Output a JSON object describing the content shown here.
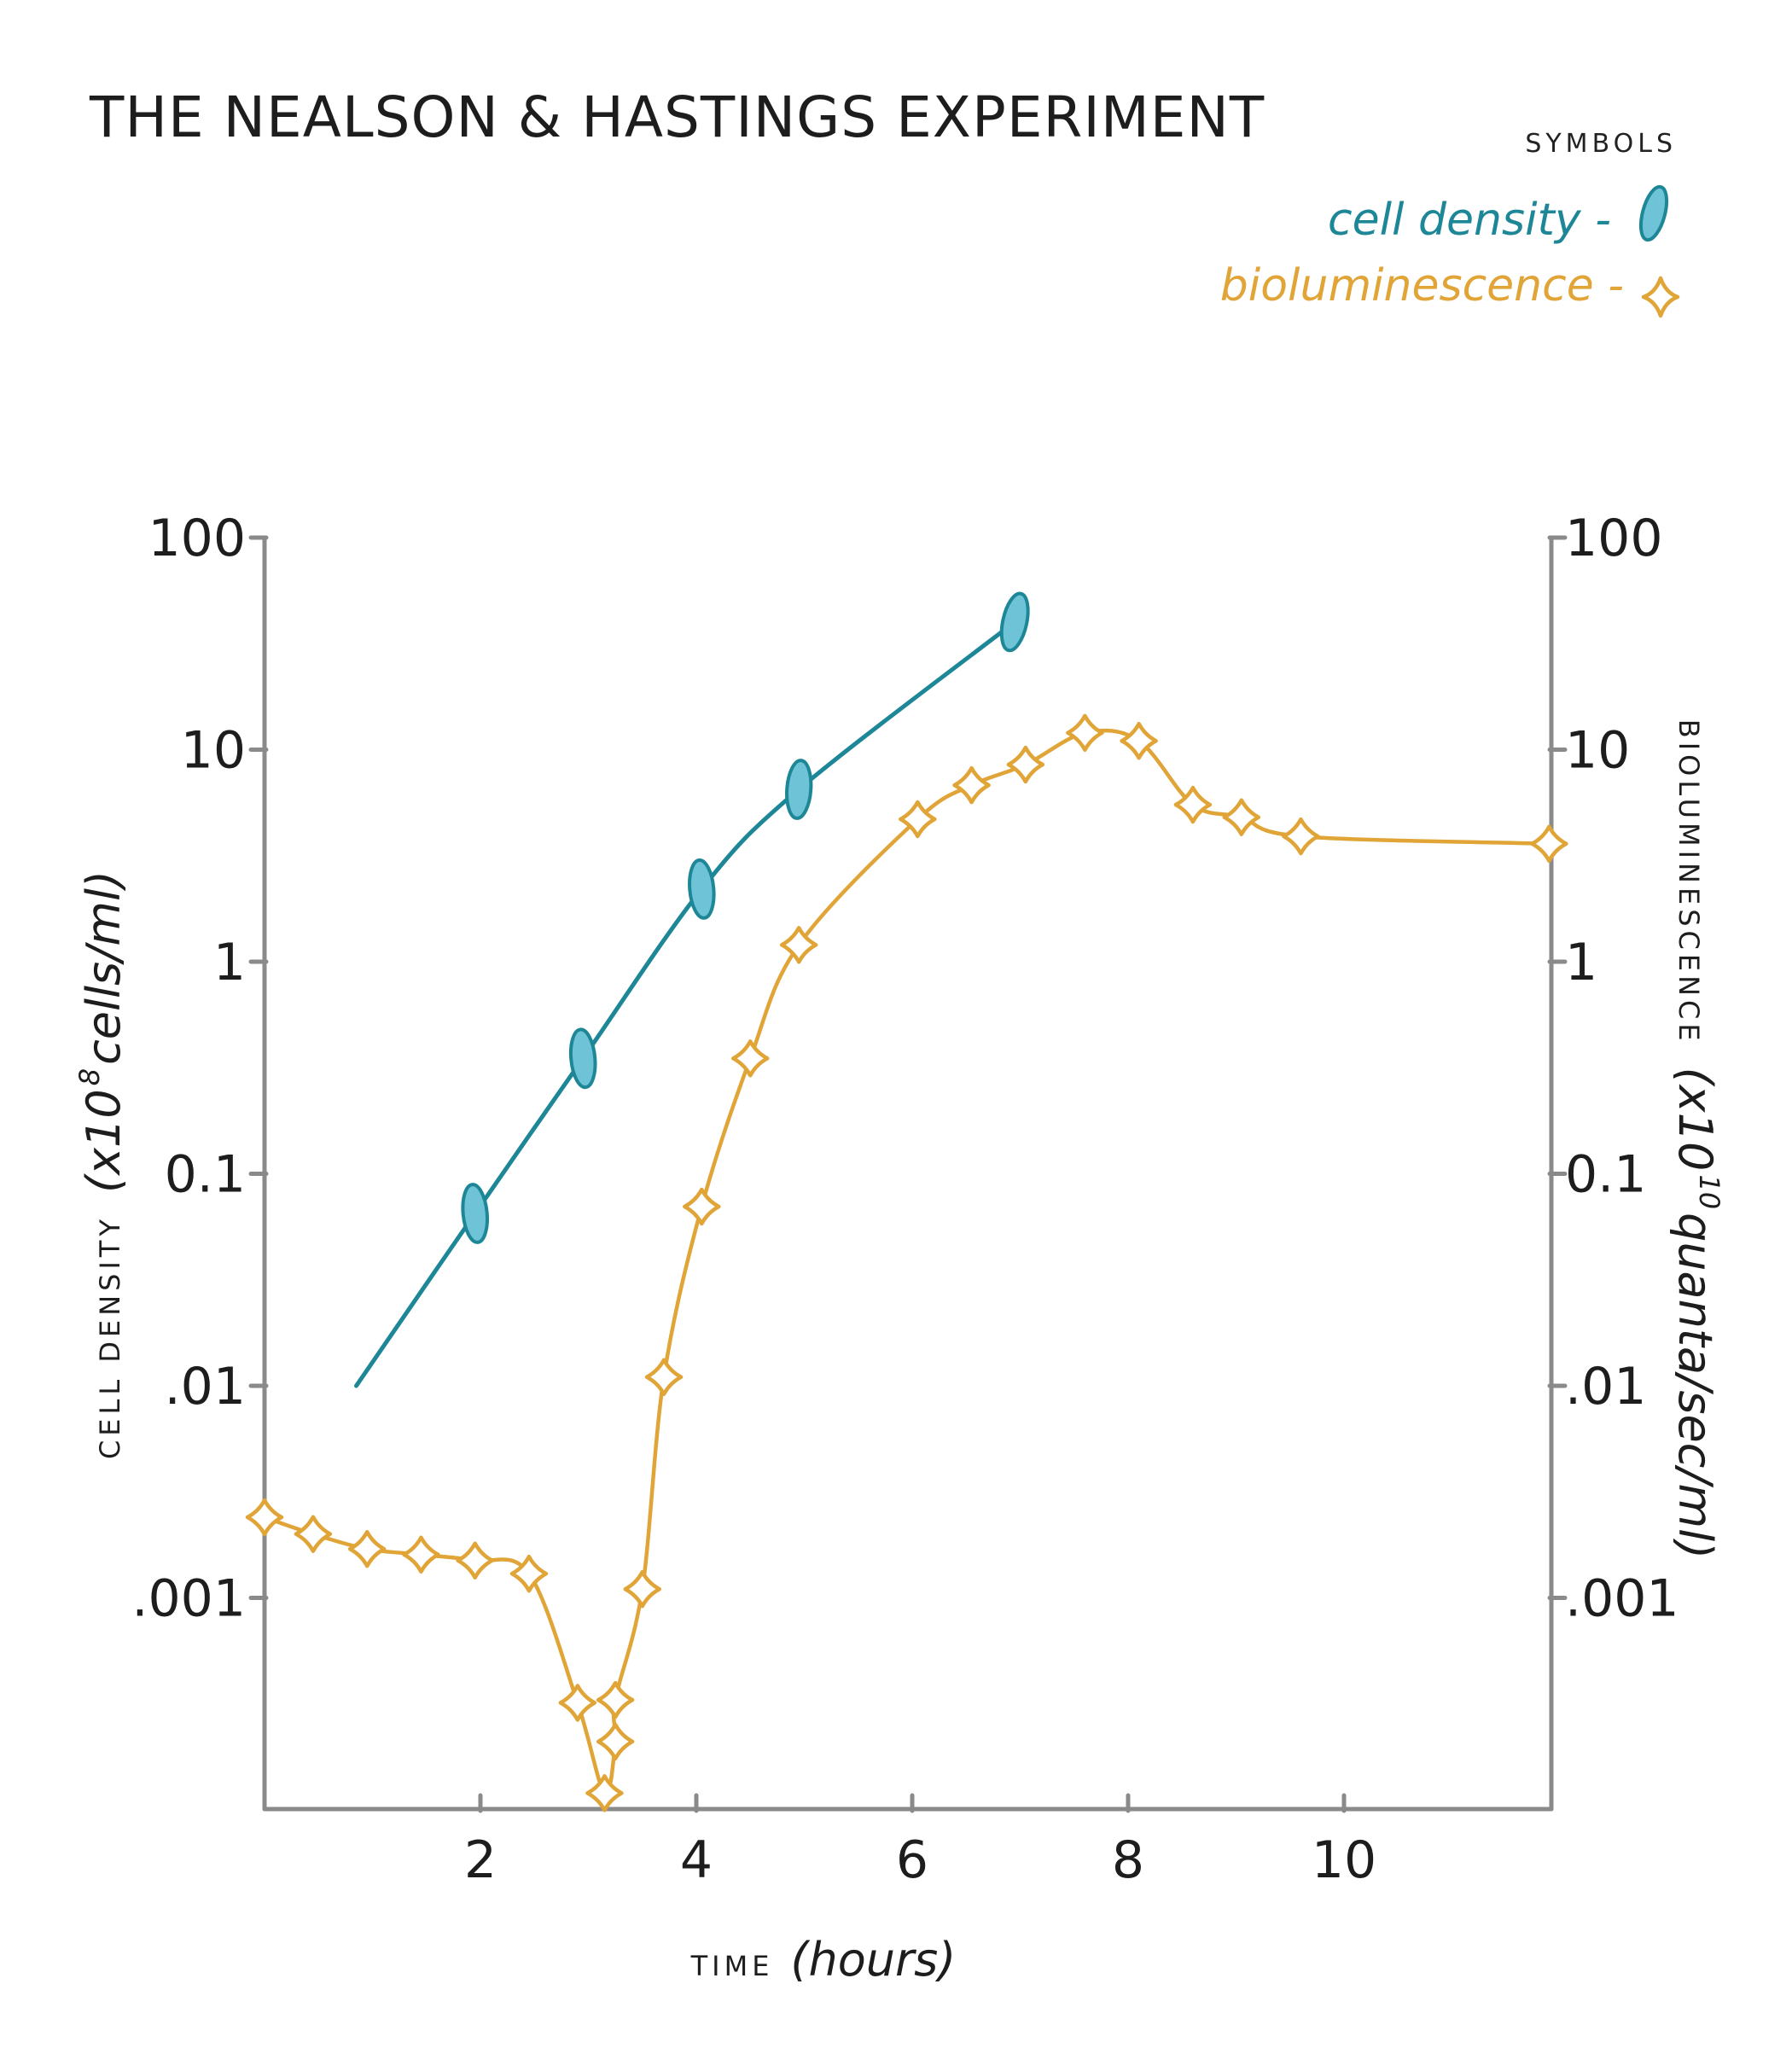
{
  "title": "THE NEALSON & HASTINGS EXPERIMENT",
  "legend": {
    "heading": "SYMBOLS",
    "items": [
      {
        "label": "cell density -",
        "color": "#1e8797",
        "fill": "#6ec3d6",
        "marker": "oval"
      },
      {
        "label": "bioluminescence -",
        "color": "#e0a437",
        "fill": "#ffffff",
        "marker": "four-point-star"
      }
    ]
  },
  "colors": {
    "axis": "#8a8a8a",
    "text": "#1d1d1d"
  },
  "chart_data": {
    "type": "line",
    "xlabel": {
      "caps": "TIME",
      "italic": "(hours)"
    },
    "ylabel_left": {
      "caps": "CELL DENSITY",
      "italic": "(x10",
      "sup": "8",
      "tail": " cells/ml)"
    },
    "ylabel_right": {
      "caps": "BIOLUMINESCENCE",
      "italic": "(x10",
      "sup": "10",
      "tail": " quanta/sec/ml)"
    },
    "xlim": [
      0,
      11.9
    ],
    "ylim": [
      0.0001,
      100
    ],
    "yscale": "log",
    "x_ticks": [
      2,
      4,
      6,
      8,
      10
    ],
    "x_tick_labels": [
      "2",
      "4",
      "6",
      "8",
      "10"
    ],
    "y_ticks": [
      0.001,
      0.01,
      0.1,
      1,
      10,
      100
    ],
    "y_tick_labels_left": [
      ".001",
      ".01",
      "0.1",
      "1",
      "10",
      "100"
    ],
    "y_tick_labels_right": [
      ".001",
      ".01",
      "0.1",
      "1",
      "10",
      "100"
    ],
    "grid": false,
    "legend_position": "top-right",
    "series": [
      {
        "name": "cell density",
        "axis": "left",
        "points": [
          {
            "x": 0.85,
            "y": 0.01,
            "marker": false
          },
          {
            "x": 1.95,
            "y": 0.065,
            "marker": true
          },
          {
            "x": 2.95,
            "y": 0.35,
            "marker": true
          },
          {
            "x": 4.05,
            "y": 2.2,
            "marker": true
          },
          {
            "x": 4.95,
            "y": 6.5,
            "marker": true
          },
          {
            "x": 6.95,
            "y": 40,
            "marker": true
          }
        ]
      },
      {
        "name": "bioluminescence",
        "axis": "right",
        "points": [
          {
            "x": 0.0,
            "y": 0.0024
          },
          {
            "x": 0.45,
            "y": 0.002
          },
          {
            "x": 0.95,
            "y": 0.0017
          },
          {
            "x": 1.45,
            "y": 0.0016
          },
          {
            "x": 1.95,
            "y": 0.0015
          },
          {
            "x": 2.45,
            "y": 0.0013
          },
          {
            "x": 2.9,
            "y": 0.00032
          },
          {
            "x": 3.15,
            "y": 0.00012
          },
          {
            "x": 3.25,
            "y": 0.00021
          },
          {
            "x": 3.25,
            "y": 0.00033
          },
          {
            "x": 3.5,
            "y": 0.0011
          },
          {
            "x": 3.7,
            "y": 0.011
          },
          {
            "x": 4.05,
            "y": 0.07
          },
          {
            "x": 4.5,
            "y": 0.35
          },
          {
            "x": 4.95,
            "y": 1.2
          },
          {
            "x": 6.05,
            "y": 4.7
          },
          {
            "x": 6.55,
            "y": 6.8
          },
          {
            "x": 7.05,
            "y": 8.5
          },
          {
            "x": 7.6,
            "y": 12
          },
          {
            "x": 8.1,
            "y": 11
          },
          {
            "x": 8.6,
            "y": 5.5
          },
          {
            "x": 9.05,
            "y": 4.8
          },
          {
            "x": 9.6,
            "y": 3.9
          },
          {
            "x": 11.9,
            "y": 3.6
          }
        ]
      }
    ]
  }
}
